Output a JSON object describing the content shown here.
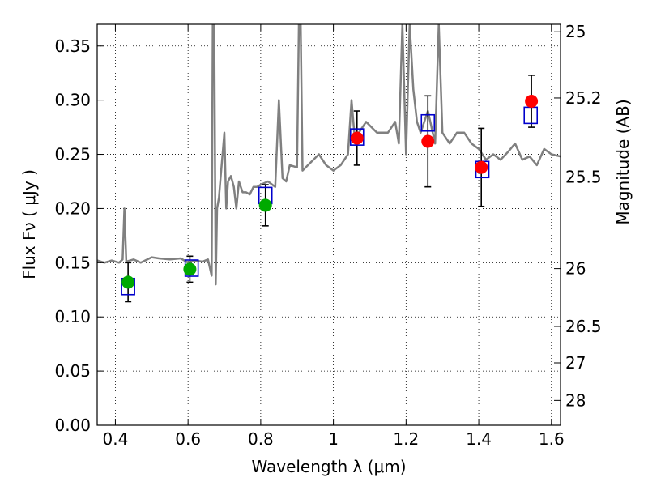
{
  "chart_data": {
    "type": "scatter",
    "xlabel": "Wavelength  λ (μm)",
    "ylabel": "Flux  Fν  ( μJy )",
    "ylabel_right": "Magnitude (AB)",
    "xlim": [
      0.35,
      1.625
    ],
    "ylim": [
      0.0,
      0.37
    ],
    "grid": true,
    "x_ticks": [
      0.4,
      0.6,
      0.8,
      1.0,
      1.2,
      1.4,
      1.6
    ],
    "x_tick_labels": [
      "0.4",
      "0.6",
      "0.8",
      "1",
      "1.2",
      "1.4",
      "1.6"
    ],
    "y_ticks": [
      0.0,
      0.05,
      0.1,
      0.15,
      0.2,
      0.25,
      0.3,
      0.35
    ],
    "y_tick_labels": [
      "0.00",
      "0.05",
      "0.10",
      "0.15",
      "0.20",
      "0.25",
      "0.30",
      "0.35"
    ],
    "right_ticks": [
      {
        "mag": 25,
        "label": "25"
      },
      {
        "mag": 25.2,
        "label": "25.2"
      },
      {
        "mag": 25.5,
        "label": "25.5"
      },
      {
        "mag": 26,
        "label": "26"
      },
      {
        "mag": 26.5,
        "label": "26.5"
      },
      {
        "mag": 27,
        "label": "27"
      },
      {
        "mag": 28,
        "label": "28"
      }
    ],
    "series": [
      {
        "type": "line",
        "color": "#808080",
        "x": [
          0.35,
          0.37,
          0.39,
          0.41,
          0.42,
          0.425,
          0.43,
          0.45,
          0.47,
          0.5,
          0.52,
          0.55,
          0.58,
          0.6,
          0.62,
          0.64,
          0.655,
          0.665,
          0.668,
          0.672,
          0.676,
          0.68,
          0.685,
          0.69,
          0.695,
          0.7,
          0.705,
          0.71,
          0.718,
          0.726,
          0.733,
          0.74,
          0.75,
          0.76,
          0.77,
          0.78,
          0.79,
          0.8,
          0.82,
          0.84,
          0.85,
          0.86,
          0.87,
          0.88,
          0.9,
          0.905,
          0.91,
          0.915,
          0.93,
          0.96,
          0.98,
          1.0,
          1.02,
          1.04,
          1.05,
          1.06,
          1.07,
          1.09,
          1.12,
          1.15,
          1.17,
          1.18,
          1.19,
          1.2,
          1.21,
          1.22,
          1.23,
          1.24,
          1.26,
          1.28,
          1.29,
          1.3,
          1.32,
          1.34,
          1.36,
          1.38,
          1.4,
          1.42,
          1.44,
          1.46,
          1.48,
          1.5,
          1.52,
          1.54,
          1.56,
          1.58,
          1.6,
          1.625
        ],
        "y": [
          0.152,
          0.15,
          0.152,
          0.15,
          0.153,
          0.2,
          0.151,
          0.153,
          0.15,
          0.155,
          0.154,
          0.153,
          0.154,
          0.15,
          0.152,
          0.151,
          0.153,
          0.138,
          0.37,
          0.37,
          0.13,
          0.2,
          0.21,
          0.23,
          0.25,
          0.27,
          0.2,
          0.225,
          0.23,
          0.22,
          0.2,
          0.225,
          0.215,
          0.215,
          0.213,
          0.22,
          0.22,
          0.222,
          0.225,
          0.22,
          0.3,
          0.228,
          0.225,
          0.24,
          0.238,
          0.37,
          0.37,
          0.235,
          0.24,
          0.25,
          0.24,
          0.235,
          0.24,
          0.25,
          0.3,
          0.26,
          0.27,
          0.28,
          0.27,
          0.27,
          0.28,
          0.26,
          0.37,
          0.25,
          0.37,
          0.31,
          0.28,
          0.27,
          0.29,
          0.26,
          0.37,
          0.27,
          0.26,
          0.27,
          0.27,
          0.26,
          0.255,
          0.245,
          0.25,
          0.245,
          0.252,
          0.26,
          0.245,
          0.248,
          0.24,
          0.255,
          0.25,
          0.248
        ]
      },
      {
        "type": "square",
        "color": "#0000cc",
        "x": [
          0.435,
          0.61,
          0.813,
          1.065,
          1.26,
          1.41,
          1.543
        ],
        "y": [
          0.128,
          0.145,
          0.212,
          0.266,
          0.279,
          0.236,
          0.286
        ]
      },
      {
        "type": "point",
        "color": "#00aa00",
        "x": [
          0.435,
          0.605,
          0.813
        ],
        "y": [
          0.132,
          0.144,
          0.203
        ],
        "err": [
          0.018,
          0.012,
          0.019
        ]
      },
      {
        "type": "point",
        "color": "#ff0000",
        "x": [
          1.065,
          1.26,
          1.407,
          1.545
        ],
        "y": [
          0.265,
          0.262,
          0.238,
          0.299
        ],
        "err": [
          0.025,
          0.042,
          0.036,
          0.024
        ]
      }
    ]
  }
}
